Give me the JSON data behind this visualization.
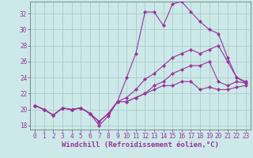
{
  "xlabel": "Windchill (Refroidissement éolien,°C)",
  "bg_color": "#cce8e8",
  "line_color": "#993399",
  "grid_color": "#aacccc",
  "xlim": [
    -0.5,
    23.5
  ],
  "ylim": [
    17.5,
    33.5
  ],
  "yticks": [
    18,
    20,
    22,
    24,
    26,
    28,
    30,
    32
  ],
  "xticks": [
    0,
    1,
    2,
    3,
    4,
    5,
    6,
    7,
    8,
    9,
    10,
    11,
    12,
    13,
    14,
    15,
    16,
    17,
    18,
    19,
    20,
    21,
    22,
    23
  ],
  "series": [
    [
      20.5,
      20.0,
      19.3,
      20.2,
      20.0,
      20.2,
      19.5,
      18.0,
      19.2,
      21.0,
      24.0,
      27.0,
      32.2,
      32.2,
      30.5,
      33.2,
      33.5,
      32.2,
      31.0,
      30.0,
      29.5,
      26.5,
      24.0,
      23.5
    ],
    [
      20.5,
      20.0,
      19.3,
      20.2,
      20.0,
      20.2,
      19.5,
      18.5,
      19.5,
      21.0,
      21.5,
      22.5,
      23.8,
      24.5,
      25.5,
      26.5,
      27.0,
      27.5,
      27.0,
      27.5,
      28.0,
      26.0,
      24.0,
      23.3
    ],
    [
      20.5,
      20.0,
      19.3,
      20.2,
      20.0,
      20.2,
      19.5,
      18.5,
      19.5,
      21.0,
      21.0,
      21.5,
      22.0,
      23.0,
      23.5,
      24.5,
      25.0,
      25.5,
      25.5,
      26.0,
      23.5,
      23.0,
      23.5,
      23.3
    ],
    [
      20.5,
      20.0,
      19.3,
      20.2,
      20.0,
      20.2,
      19.5,
      18.5,
      19.5,
      21.0,
      21.0,
      21.5,
      22.0,
      22.5,
      23.0,
      23.0,
      23.5,
      23.5,
      22.5,
      22.8,
      22.5,
      22.5,
      22.8,
      23.0
    ]
  ]
}
